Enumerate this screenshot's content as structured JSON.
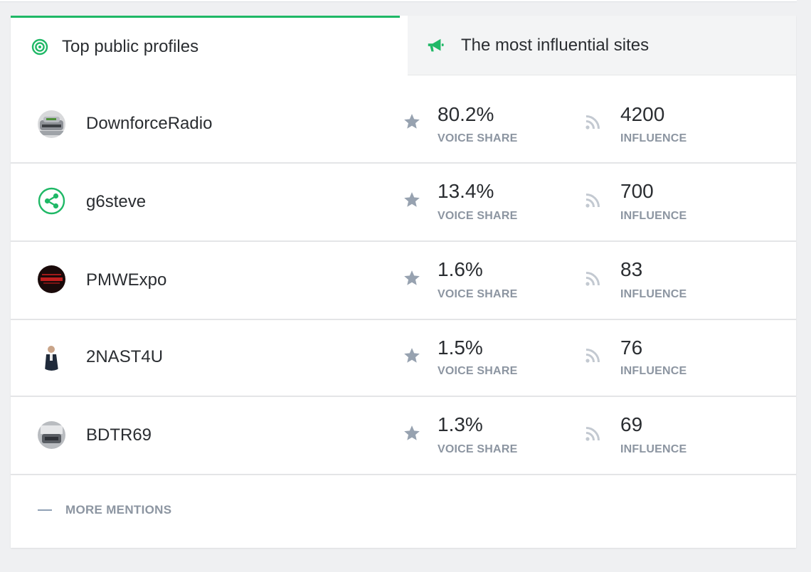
{
  "tabs": [
    {
      "label": "Top public profiles",
      "icon": "target-icon",
      "active": true
    },
    {
      "label": "The most influential sites",
      "icon": "megaphone-icon",
      "active": false
    }
  ],
  "metric_labels": {
    "voice_share": "VOICE SHARE",
    "influence": "INFLUENCE"
  },
  "rows": [
    {
      "name": "DownforceRadio",
      "voice_share": "80.2%",
      "influence": "4200",
      "avatar": "photo-avatar"
    },
    {
      "name": "g6steve",
      "voice_share": "13.4%",
      "influence": "700",
      "avatar": "share-icon"
    },
    {
      "name": "PMWExpo",
      "voice_share": "1.6%",
      "influence": "83",
      "avatar": "photo-avatar"
    },
    {
      "name": "2NAST4U",
      "voice_share": "1.5%",
      "influence": "76",
      "avatar": "photo-avatar"
    },
    {
      "name": "BDTR69",
      "voice_share": "1.3%",
      "influence": "69",
      "avatar": "photo-avatar"
    }
  ],
  "more_mentions_label": "MORE MENTIONS",
  "colors": {
    "accent": "#1fb866",
    "muted": "#8c95a1",
    "text": "#2a2d31"
  }
}
